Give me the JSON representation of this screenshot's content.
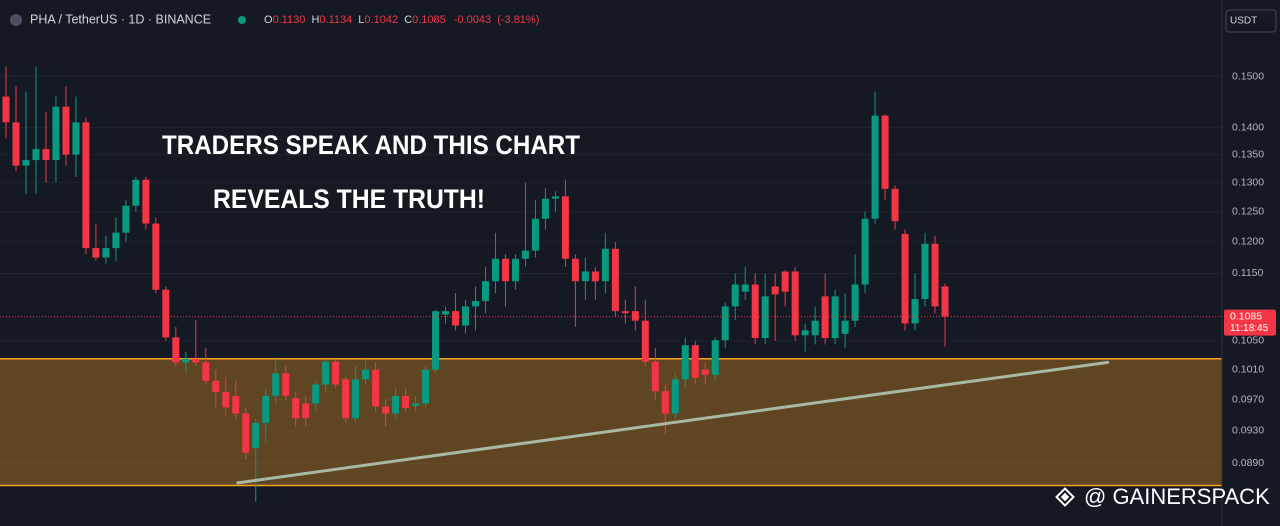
{
  "chart_data": {
    "type": "candlestick",
    "symbol": "PHA / TetherUS · 1D · BINANCE",
    "legend_keys": [
      "O",
      "H",
      "L",
      "C"
    ],
    "legend_values": [
      {
        "value": 0.113,
        "label": "0.1130"
      },
      {
        "value": 0.1134,
        "label": "0.1134"
      },
      {
        "value": 0.1042,
        "label": "0.1042"
      },
      {
        "value": 0.1085,
        "label": "0.1085"
      }
    ],
    "change": {
      "value": -0.0043,
      "label": "-0.0043"
    },
    "change_pct": {
      "value": -3.81,
      "label": "(-3.81%)"
    },
    "currency": "USDT",
    "annotations": [
      "TRADERS SPEAK AND THIS CHART",
      "REVEALS THE TRUTH!"
    ],
    "watermark": "@ GAINERSPACK",
    "colors": {
      "up": "#089981",
      "down": "#f23645"
    },
    "log_scale": true,
    "ylim": [
      0.0818,
      0.1663
    ],
    "yticks": [
      {
        "value": 0.15,
        "label": "0.1500"
      },
      {
        "value": 0.14,
        "label": "0.1400"
      },
      {
        "value": 0.135,
        "label": "0.1350"
      },
      {
        "value": 0.13,
        "label": "0.1300"
      },
      {
        "value": 0.125,
        "label": "0.1250"
      },
      {
        "value": 0.12,
        "label": "0.1200"
      },
      {
        "value": 0.115,
        "label": "0.1150"
      },
      {
        "value": 0.105,
        "label": "0.1050"
      },
      {
        "value": 0.101,
        "label": "0.1010"
      },
      {
        "value": 0.097,
        "label": "0.0970"
      },
      {
        "value": 0.093,
        "label": "0.0930"
      },
      {
        "value": 0.089,
        "label": "0.0890"
      }
    ],
    "last_price": {
      "value": 0.1085,
      "label": "0.1085"
    },
    "countdown": "11:18:45",
    "zone": [
      0.0864,
      0.1025
    ],
    "zone_color": "#f7a21b",
    "trendline": {
      "x": [
        23.2,
        110.3
      ],
      "y": [
        0.0867,
        0.102
      ]
    },
    "open": [
      0.146,
      0.141,
      0.133,
      0.134,
      0.136,
      0.134,
      0.144,
      0.135,
      0.141,
      0.119,
      0.1175,
      0.119,
      0.1215,
      0.126,
      0.1305,
      0.123,
      0.1125,
      0.1055,
      0.102,
      0.1025,
      0.102,
      0.0995,
      0.098,
      0.0975,
      0.0952,
      0.0909,
      0.094,
      0.0975,
      0.1005,
      0.0972,
      0.0965,
      0.0965,
      0.099,
      0.1021,
      0.0997,
      0.0946,
      0.0997,
      0.101,
      0.0961,
      0.0952,
      0.0975,
      0.0962,
      0.0965,
      0.101,
      0.1088,
      0.1093,
      0.1072,
      0.11,
      0.1108,
      0.1138,
      0.1173,
      0.1138,
      0.1173,
      0.1186,
      0.1238,
      0.1272,
      0.1276,
      0.1173,
      0.1138,
      0.1153,
      0.1138,
      0.1189,
      0.1093,
      0.1093,
      0.1079,
      0.1021,
      0.0981,
      0.0952,
      0.0997,
      0.1044,
      0.101,
      0.1003,
      0.1051,
      0.11,
      0.1122,
      0.1133,
      0.1054,
      0.113,
      0.1153,
      0.1153,
      0.1058,
      0.1058,
      0.1115,
      0.1054,
      0.106,
      0.1079,
      0.1133,
      0.1238,
      0.1423,
      0.1289,
      0.1213,
      0.1075,
      0.1111,
      0.1197,
      0.113
    ],
    "high": [
      0.152,
      0.148,
      0.147,
      0.152,
      0.143,
      0.146,
      0.148,
      0.146,
      0.142,
      0.123,
      0.121,
      0.124,
      0.127,
      0.131,
      0.131,
      0.124,
      0.113,
      0.107,
      0.1035,
      0.108,
      0.104,
      0.101,
      0.1,
      0.0995,
      0.096,
      0.0945,
      0.0985,
      0.1025,
      0.1015,
      0.098,
      0.0975,
      0.0995,
      0.1025,
      0.1025,
      0.1,
      0.1015,
      0.1025,
      0.102,
      0.097,
      0.0985,
      0.0985,
      0.0975,
      0.1015,
      0.1095,
      0.11,
      0.112,
      0.111,
      0.113,
      0.116,
      0.1215,
      0.118,
      0.118,
      0.13,
      0.127,
      0.129,
      0.1285,
      0.1305,
      0.118,
      0.1175,
      0.116,
      0.1215,
      0.12,
      0.111,
      0.113,
      0.111,
      0.104,
      0.099,
      0.1005,
      0.1055,
      0.105,
      0.102,
      0.1055,
      0.1105,
      0.115,
      0.116,
      0.115,
      0.115,
      0.115,
      0.1155,
      0.116,
      0.1075,
      0.11,
      0.115,
      0.1125,
      0.112,
      0.118,
      0.125,
      0.147,
      0.1425,
      0.1295,
      0.122,
      0.115,
      0.1215,
      0.121,
      0.1134
    ],
    "low": [
      0.138,
      0.132,
      0.128,
      0.128,
      0.13,
      0.13,
      0.133,
      0.131,
      0.118,
      0.117,
      0.1165,
      0.117,
      0.12,
      0.125,
      0.122,
      0.112,
      0.105,
      0.1015,
      0.1005,
      0.1015,
      0.099,
      0.096,
      0.095,
      0.0945,
      0.0895,
      0.0845,
      0.0915,
      0.0965,
      0.097,
      0.0935,
      0.0935,
      0.0955,
      0.098,
      0.0985,
      0.094,
      0.094,
      0.099,
      0.0955,
      0.0935,
      0.0945,
      0.0955,
      0.0955,
      0.096,
      0.1005,
      0.1075,
      0.1065,
      0.106,
      0.1065,
      0.109,
      0.112,
      0.11,
      0.1125,
      0.116,
      0.1175,
      0.122,
      0.125,
      0.116,
      0.107,
      0.111,
      0.111,
      0.112,
      0.1085,
      0.1075,
      0.1065,
      0.1015,
      0.097,
      0.0925,
      0.0945,
      0.0985,
      0.099,
      0.099,
      0.0995,
      0.104,
      0.108,
      0.111,
      0.1045,
      0.1045,
      0.105,
      0.11,
      0.105,
      0.1035,
      0.1045,
      0.1045,
      0.1045,
      0.104,
      0.107,
      0.112,
      0.123,
      0.127,
      0.122,
      0.1065,
      0.1065,
      0.11,
      0.109,
      0.1042
    ],
    "close": [
      0.141,
      0.133,
      0.134,
      0.136,
      0.134,
      0.144,
      0.135,
      0.141,
      0.119,
      0.1175,
      0.119,
      0.1215,
      0.126,
      0.1305,
      0.123,
      0.1125,
      0.1055,
      0.102,
      0.1025,
      0.102,
      0.0995,
      0.098,
      0.096,
      0.0952,
      0.0903,
      0.094,
      0.0975,
      0.1005,
      0.0975,
      0.0946,
      0.0946,
      0.099,
      0.1021,
      0.099,
      0.0946,
      0.0997,
      0.101,
      0.0961,
      0.0952,
      0.0975,
      0.0959,
      0.0965,
      0.101,
      0.1093,
      0.1093,
      0.1072,
      0.11,
      0.1108,
      0.1138,
      0.1173,
      0.1138,
      0.1173,
      0.1186,
      0.1238,
      0.1272,
      0.1276,
      0.1173,
      0.1138,
      0.1153,
      0.1138,
      0.1189,
      0.1093,
      0.109,
      0.1079,
      0.1021,
      0.0981,
      0.0952,
      0.0997,
      0.1044,
      0.0999,
      0.1003,
      0.1051,
      0.11,
      0.1133,
      0.1133,
      0.1054,
      0.1115,
      0.1118,
      0.1122,
      0.1058,
      0.1065,
      0.1079,
      0.1054,
      0.1115,
      0.1079,
      0.1133,
      0.1238,
      0.1423,
      0.1289,
      0.1234,
      0.1075,
      0.1111,
      0.1197,
      0.11,
      0.1085
    ]
  }
}
